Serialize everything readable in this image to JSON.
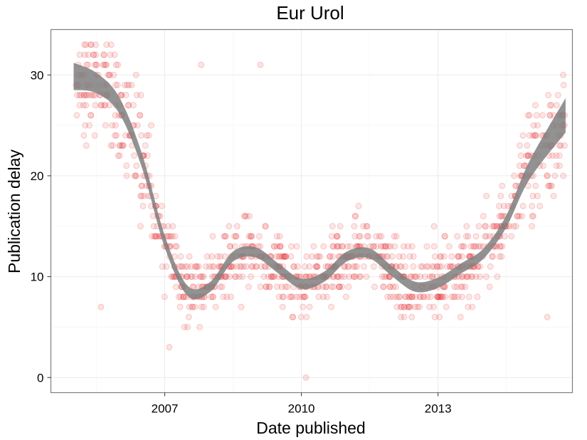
{
  "chart_data": {
    "type": "scatter",
    "title": "Eur Urol",
    "xlabel": "Date published",
    "ylabel": "Publication delay",
    "x_unit": "year",
    "xlim": [
      2004.5,
      2015.95
    ],
    "ylim": [
      -1.5,
      34.5
    ],
    "x_ticks": [
      2007,
      2010,
      2013
    ],
    "y_ticks": [
      0,
      10,
      20,
      30
    ],
    "grid": true,
    "point_color": "#e31a1c",
    "smooth_color": "#7f7f7f",
    "series": [
      {
        "type": "scatter",
        "density_profile": [
          {
            "x_range": [
              2005.0,
              2006.0
            ],
            "y_range": [
              12,
              33
            ]
          },
          {
            "x_range": [
              2006.0,
              2006.9
            ],
            "y_range": [
              7,
              34
            ]
          },
          {
            "x_range": [
              2006.9,
              2008.0
            ],
            "y_range": [
              3,
              25
            ]
          },
          {
            "x_range": [
              2008.0,
              2010.0
            ],
            "y_range": [
              4,
              26
            ]
          },
          {
            "x_range": [
              2010.0,
              2012.0
            ],
            "y_range": [
              0,
              29
            ]
          },
          {
            "x_range": [
              2012.0,
              2013.5
            ],
            "y_range": [
              4,
              28
            ]
          },
          {
            "x_range": [
              2013.5,
              2014.3
            ],
            "y_range": [
              4,
              26
            ]
          },
          {
            "x_range": [
              2014.3,
              2015.8
            ],
            "y_range": [
              6,
              33
            ]
          }
        ]
      },
      {
        "type": "smooth",
        "points": [
          {
            "x": 2005.0,
            "y": 30.0,
            "lo": 28.5,
            "hi": 31.2
          },
          {
            "x": 2005.5,
            "y": 29.2,
            "lo": 28.2,
            "hi": 30.2
          },
          {
            "x": 2006.0,
            "y": 27.0,
            "lo": 26.2,
            "hi": 27.8
          },
          {
            "x": 2006.5,
            "y": 21.5,
            "lo": 20.8,
            "hi": 22.2
          },
          {
            "x": 2007.0,
            "y": 13.5,
            "lo": 12.9,
            "hi": 14.1
          },
          {
            "x": 2007.5,
            "y": 8.6,
            "lo": 8.1,
            "hi": 9.1
          },
          {
            "x": 2008.0,
            "y": 9.0,
            "lo": 8.5,
            "hi": 9.5
          },
          {
            "x": 2008.5,
            "y": 12.0,
            "lo": 11.5,
            "hi": 12.5
          },
          {
            "x": 2009.0,
            "y": 12.4,
            "lo": 11.9,
            "hi": 12.9
          },
          {
            "x": 2009.5,
            "y": 10.8,
            "lo": 10.3,
            "hi": 11.3
          },
          {
            "x": 2010.0,
            "y": 9.3,
            "lo": 8.8,
            "hi": 9.8
          },
          {
            "x": 2010.5,
            "y": 10.0,
            "lo": 9.5,
            "hi": 10.5
          },
          {
            "x": 2011.0,
            "y": 12.0,
            "lo": 11.5,
            "hi": 12.5
          },
          {
            "x": 2011.5,
            "y": 12.3,
            "lo": 11.8,
            "hi": 12.8
          },
          {
            "x": 2012.0,
            "y": 10.5,
            "lo": 10.0,
            "hi": 11.0
          },
          {
            "x": 2012.5,
            "y": 9.0,
            "lo": 8.5,
            "hi": 9.5
          },
          {
            "x": 2013.0,
            "y": 9.4,
            "lo": 8.9,
            "hi": 9.9
          },
          {
            "x": 2013.5,
            "y": 10.8,
            "lo": 10.3,
            "hi": 11.3
          },
          {
            "x": 2014.0,
            "y": 12.3,
            "lo": 11.8,
            "hi": 12.8
          },
          {
            "x": 2014.5,
            "y": 15.5,
            "lo": 14.9,
            "hi": 16.1
          },
          {
            "x": 2015.0,
            "y": 20.5,
            "lo": 19.6,
            "hi": 21.4
          },
          {
            "x": 2015.8,
            "y": 26.0,
            "lo": 24.3,
            "hi": 27.7
          }
        ]
      }
    ]
  }
}
